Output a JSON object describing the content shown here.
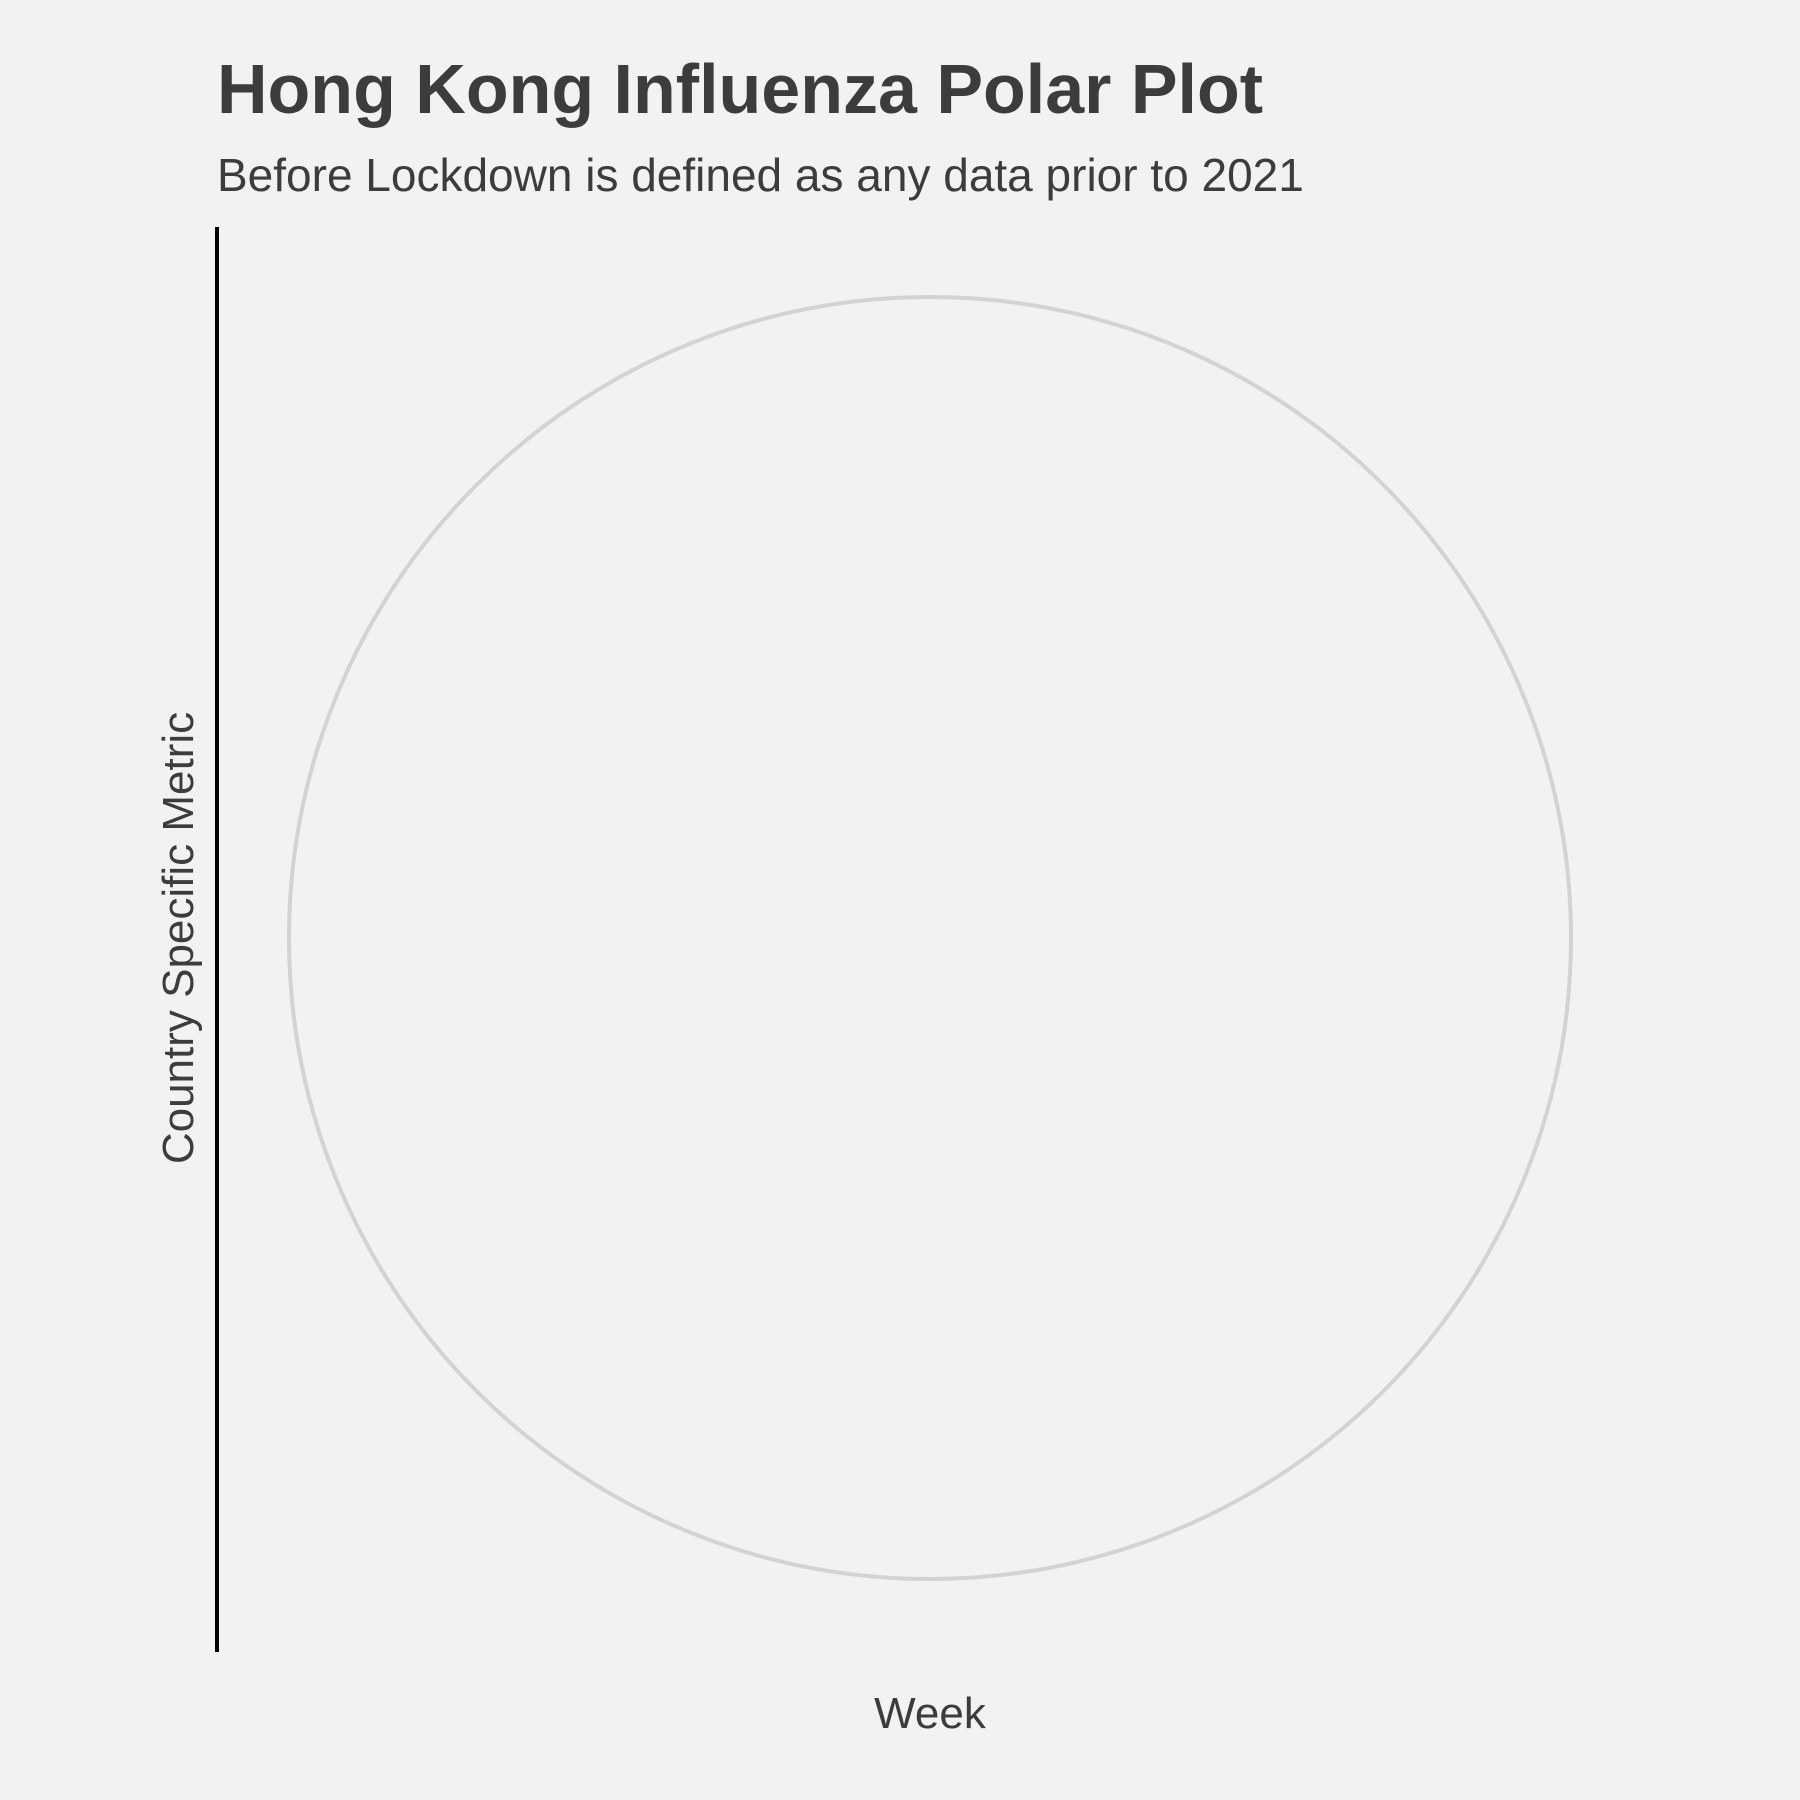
{
  "chart_data": {
    "type": "line",
    "coordinate_system": "polar",
    "title": "Hong Kong Influenza Polar Plot",
    "subtitle": "Before Lockdown is defined as any data prior to 2021",
    "xlabel": "Week",
    "ylabel": "Country Specific Metric",
    "series": [],
    "grid": true,
    "legend": "none",
    "colors": {
      "background": "#f2f2f2",
      "grid_circle": "#d3d3d3",
      "axis_line": "#000000",
      "text": "#3c3c3c"
    }
  }
}
